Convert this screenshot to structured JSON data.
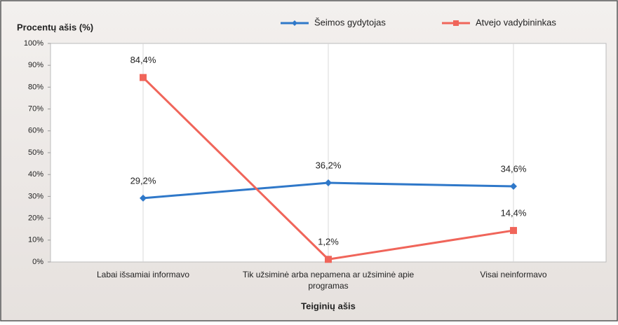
{
  "chart_data": {
    "type": "line",
    "y_axis_title": "Procentų ašis (%)",
    "x_axis_title": "Teiginių ašis",
    "categories": [
      "Labai išsamiai informavo",
      "Tik užsiminė arba nepamena ar užsiminė apie programas",
      "Visai neinformavo"
    ],
    "series": [
      {
        "name": "Šeimos gydytojas",
        "color": "#2f78c9",
        "values": [
          29.2,
          36.2,
          34.6
        ],
        "value_labels": [
          "29,2%",
          "36,2%",
          "34,6%"
        ]
      },
      {
        "name": "Atvejo vadybininkas",
        "color": "#f0655a",
        "values": [
          84.4,
          1.2,
          14.4
        ],
        "value_labels": [
          "84,4%",
          "1,2%",
          "14,4%"
        ]
      }
    ],
    "ylim": [
      0,
      100
    ],
    "yticks": [
      {
        "value": 0,
        "label": "0%"
      },
      {
        "value": 10,
        "label": "10%"
      },
      {
        "value": 20,
        "label": "20%"
      },
      {
        "value": 30,
        "label": "30%"
      },
      {
        "value": 40,
        "label": "40%"
      },
      {
        "value": 50,
        "label": "50%"
      },
      {
        "value": 60,
        "label": "60%"
      },
      {
        "value": 70,
        "label": "70%"
      },
      {
        "value": 80,
        "label": "80%"
      },
      {
        "value": 90,
        "label": "90%"
      },
      {
        "value": 100,
        "label": "100%"
      }
    ],
    "legend": "top-right"
  }
}
